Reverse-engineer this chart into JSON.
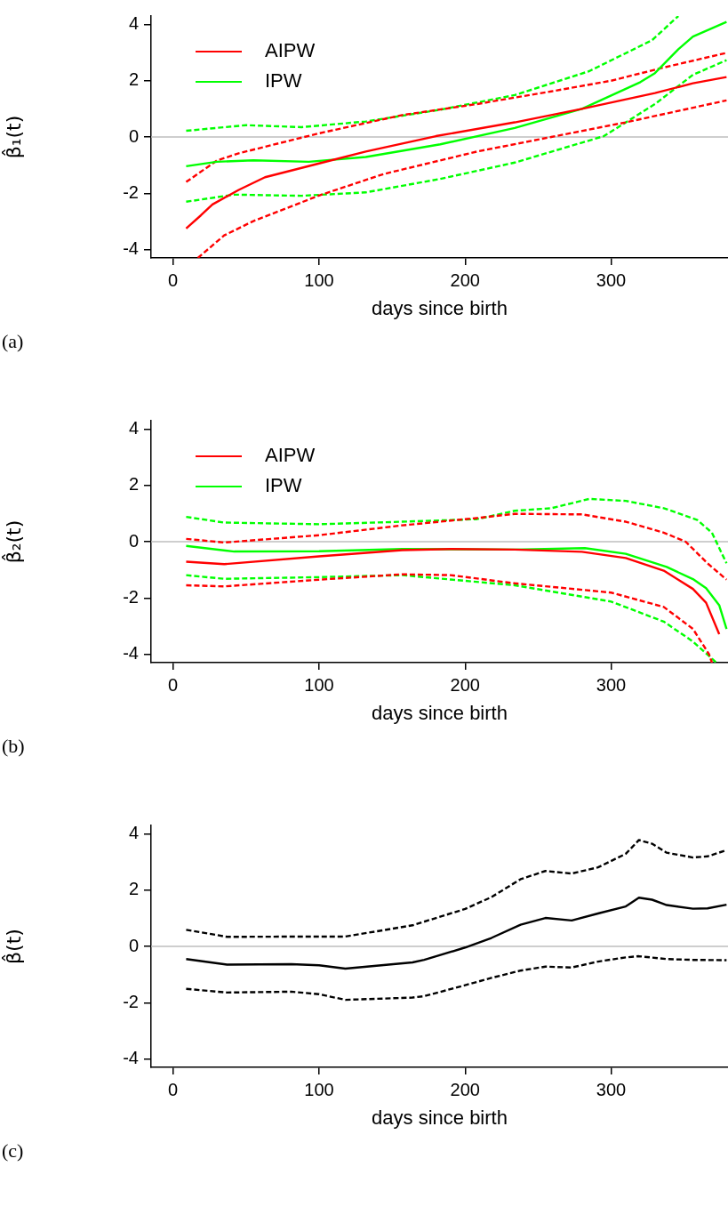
{
  "chart_data": [
    {
      "type": "line",
      "xlabel": "days since birth",
      "ylabel": "β̂₁(t)",
      "annotations": [
        "(a)"
      ],
      "xlim": [
        -15,
        380
      ],
      "ylim": [
        -4.3,
        4.3
      ],
      "xticks": [
        0,
        100,
        200,
        300
      ],
      "yticks": [
        -4,
        -2,
        0,
        2,
        4
      ],
      "grid": false,
      "legend": "top left",
      "marker": "none",
      "ref_lines": [
        {
          "axis": "y",
          "value": 0,
          "color": "#bebebe"
        }
      ],
      "series": [
        {
          "name": "AIPW",
          "color": "#ff0000",
          "line_style": "solid",
          "x": [
            9,
            19,
            27,
            45,
            63,
            100,
            132,
            180,
            234,
            280,
            330,
            356,
            379
          ],
          "values": [
            -3.25,
            -2.79,
            -2.4,
            -1.88,
            -1.43,
            -0.94,
            -0.52,
            0.03,
            0.52,
            1.0,
            1.56,
            1.91,
            2.13
          ]
        },
        {
          "name": "IPW",
          "color": "#00ff00",
          "line_style": "solid",
          "x": [
            9,
            30,
            55,
            93,
            132,
            183,
            234,
            280,
            320,
            330,
            346,
            356,
            379
          ],
          "values": [
            -1.04,
            -0.88,
            -0.83,
            -0.88,
            -0.71,
            -0.26,
            0.32,
            1.0,
            1.95,
            2.27,
            3.12,
            3.57,
            4.09
          ]
        },
        {
          "color": "#ff0000",
          "line_style": "dashed",
          "x": [
            9,
            30,
            45,
            100,
            157,
            208,
            259,
            300,
            336,
            379
          ],
          "values": [
            -1.6,
            -0.84,
            -0.58,
            0.13,
            0.78,
            1.17,
            1.62,
            2.0,
            2.47,
            2.99
          ]
        },
        {
          "color": "#ff0000",
          "line_style": "dashed",
          "x": [
            17,
            35,
            55,
            100,
            144,
            208,
            259,
            310,
            379
          ],
          "values": [
            -4.3,
            -3.5,
            -2.99,
            -2.08,
            -1.32,
            -0.52,
            0.0,
            0.52,
            1.3
          ]
        },
        {
          "color": "#00ff00",
          "line_style": "dashed",
          "x": [
            9,
            50,
            88,
            132,
            183,
            234,
            285,
            328,
            346
          ],
          "values": [
            0.22,
            0.42,
            0.35,
            0.55,
            0.97,
            1.49,
            2.34,
            3.44,
            4.3
          ]
        },
        {
          "color": "#00ff00",
          "line_style": "dashed",
          "x": [
            9,
            42,
            88,
            132,
            183,
            234,
            295,
            330,
            356,
            379
          ],
          "values": [
            -2.3,
            -2.05,
            -2.09,
            -1.97,
            -1.49,
            -0.91,
            0.03,
            1.17,
            2.21,
            2.73
          ]
        }
      ]
    },
    {
      "type": "line",
      "xlabel": "days since birth",
      "ylabel": "β̂₂(t)",
      "annotations": [
        "(b)"
      ],
      "xlim": [
        -15,
        380
      ],
      "ylim": [
        -4.3,
        4.3
      ],
      "xticks": [
        0,
        100,
        200,
        300
      ],
      "yticks": [
        -4,
        -2,
        0,
        2,
        4
      ],
      "grid": false,
      "legend": "top left",
      "marker": "none",
      "ref_lines": [
        {
          "axis": "y",
          "value": 0,
          "color": "#bebebe"
        }
      ],
      "series": [
        {
          "name": "AIPW",
          "color": "#ff0000",
          "line_style": "solid",
          "x": [
            9,
            35,
            100,
            157,
            190,
            234,
            280,
            310,
            336,
            356,
            365,
            374
          ],
          "values": [
            -0.71,
            -0.8,
            -0.52,
            -0.3,
            -0.26,
            -0.28,
            -0.36,
            -0.58,
            -1.03,
            -1.68,
            -2.17,
            -3.29
          ]
        },
        {
          "name": "IPW",
          "color": "#00ff00",
          "line_style": "solid",
          "x": [
            9,
            42,
            100,
            157,
            234,
            282,
            310,
            338,
            356,
            365,
            374,
            379
          ],
          "values": [
            -0.15,
            -0.35,
            -0.34,
            -0.26,
            -0.28,
            -0.23,
            -0.43,
            -0.9,
            -1.33,
            -1.65,
            -2.26,
            -3.1
          ]
        },
        {
          "color": "#ff0000",
          "line_style": "dashed",
          "x": [
            9,
            35,
            100,
            157,
            208,
            234,
            280,
            310,
            336,
            351,
            366,
            379
          ],
          "values": [
            0.1,
            -0.03,
            0.23,
            0.58,
            0.84,
            0.99,
            0.97,
            0.71,
            0.32,
            0.0,
            -0.77,
            -1.35
          ]
        },
        {
          "color": "#ff0000",
          "line_style": "dashed",
          "x": [
            9,
            35,
            100,
            157,
            190,
            234,
            300,
            336,
            356,
            367,
            369
          ],
          "values": [
            -1.55,
            -1.59,
            -1.35,
            -1.16,
            -1.19,
            -1.48,
            -1.81,
            -2.32,
            -3.1,
            -4.0,
            -4.3
          ]
        },
        {
          "color": "#00ff00",
          "line_style": "dashed",
          "x": [
            9,
            35,
            100,
            157,
            208,
            234,
            259,
            285,
            310,
            336,
            359,
            369,
            379
          ],
          "values": [
            0.88,
            0.68,
            0.62,
            0.71,
            0.8,
            1.1,
            1.19,
            1.52,
            1.45,
            1.19,
            0.77,
            0.32,
            -0.77
          ]
        },
        {
          "color": "#00ff00",
          "line_style": "dashed",
          "x": [
            9,
            35,
            100,
            157,
            234,
            300,
            336,
            356,
            367,
            372
          ],
          "values": [
            -1.19,
            -1.32,
            -1.26,
            -1.19,
            -1.55,
            -2.13,
            -2.84,
            -3.55,
            -4.06,
            -4.3
          ]
        }
      ]
    },
    {
      "type": "line",
      "xlabel": "days since birth",
      "ylabel": "β̂(t)",
      "annotations": [
        "(c)"
      ],
      "xlim": [
        -15,
        380
      ],
      "ylim": [
        -4.3,
        4.3
      ],
      "xticks": [
        0,
        100,
        200,
        300
      ],
      "yticks": [
        -4,
        -2,
        0,
        2,
        4
      ],
      "grid": false,
      "legend": false,
      "marker": "none",
      "ref_lines": [
        {
          "axis": "y",
          "value": 0,
          "color": "#bebebe"
        }
      ],
      "series": [
        {
          "color": "#000000",
          "line_style": "solid",
          "x": [
            9,
            37,
            81,
            100,
            118,
            164,
            172,
            200,
            218,
            238,
            255,
            273,
            291,
            310,
            319,
            328,
            338,
            356,
            366,
            379
          ],
          "values": [
            -0.45,
            -0.65,
            -0.63,
            -0.67,
            -0.79,
            -0.57,
            -0.48,
            -0.04,
            0.3,
            0.77,
            1.01,
            0.92,
            1.17,
            1.42,
            1.73,
            1.66,
            1.47,
            1.34,
            1.35,
            1.48
          ]
        },
        {
          "color": "#000000",
          "line_style": "dashed",
          "x": [
            9,
            37,
            100,
            118,
            164,
            200,
            218,
            238,
            255,
            273,
            291,
            310,
            319,
            328,
            338,
            356,
            366,
            379
          ],
          "values": [
            0.59,
            0.34,
            0.35,
            0.35,
            0.75,
            1.33,
            1.75,
            2.39,
            2.68,
            2.59,
            2.81,
            3.29,
            3.78,
            3.65,
            3.33,
            3.16,
            3.2,
            3.42
          ]
        },
        {
          "color": "#000000",
          "line_style": "dashed",
          "x": [
            9,
            37,
            81,
            100,
            118,
            164,
            172,
            200,
            218,
            238,
            255,
            273,
            291,
            310,
            319,
            338,
            356,
            379
          ],
          "values": [
            -1.51,
            -1.64,
            -1.61,
            -1.7,
            -1.9,
            -1.82,
            -1.77,
            -1.38,
            -1.12,
            -0.86,
            -0.72,
            -0.75,
            -0.54,
            -0.39,
            -0.35,
            -0.45,
            -0.48,
            -0.49
          ]
        }
      ]
    }
  ]
}
